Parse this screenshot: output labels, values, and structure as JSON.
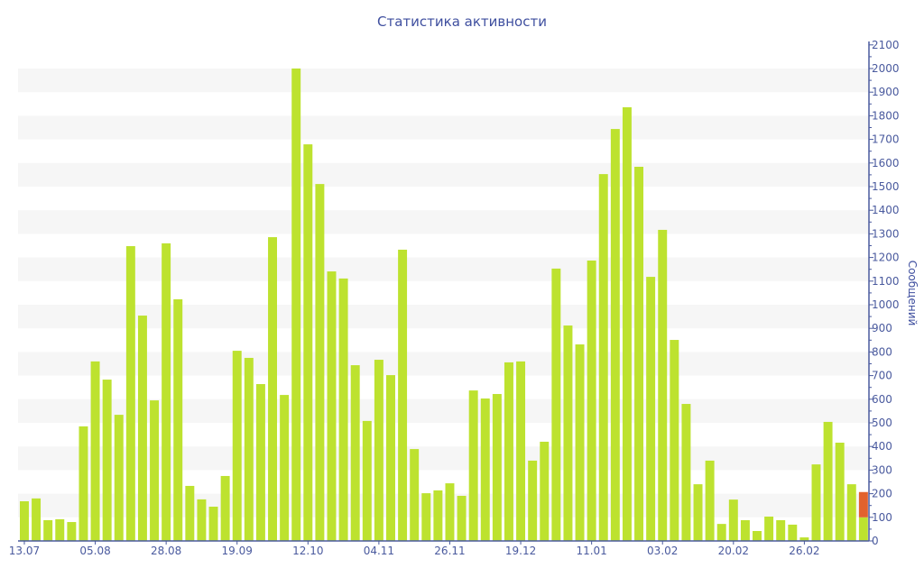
{
  "chart_data": {
    "type": "bar",
    "title": "Статистика активности",
    "xlabel": "",
    "ylabel": "Сообщений",
    "ylim": [
      0,
      2100
    ],
    "ytick_step": 100,
    "yaxis_side": "right",
    "grid": "alternating bands",
    "x_tick_labels": [
      "13.07",
      "05.08",
      "28.08",
      "19.09",
      "12.10",
      "04.11",
      "26.11",
      "19.12",
      "11.01",
      "03.02",
      "20.02",
      "26.02"
    ],
    "x_tick_every": 6,
    "series": [
      {
        "name": "main",
        "color": "#bde22f",
        "values": [
          168,
          180,
          88,
          92,
          80,
          485,
          760,
          683,
          534,
          1248,
          954,
          595,
          1260,
          1023,
          233,
          176,
          145,
          275,
          805,
          775,
          664,
          1286,
          618,
          2000,
          1679,
          1511,
          1141,
          1111,
          744,
          508,
          767,
          702,
          1233,
          389,
          202,
          214,
          244,
          191,
          637,
          603,
          622,
          756,
          760,
          340,
          420,
          1153,
          912,
          832,
          1187,
          1553,
          1744,
          1836,
          1584,
          1118,
          1317,
          851,
          580,
          240,
          340,
          72,
          175,
          88,
          42,
          103,
          88,
          69,
          15,
          324,
          504,
          416,
          240,
          100
        ]
      },
      {
        "name": "current",
        "color": "#e2622d",
        "values": [
          0,
          0,
          0,
          0,
          0,
          0,
          0,
          0,
          0,
          0,
          0,
          0,
          0,
          0,
          0,
          0,
          0,
          0,
          0,
          0,
          0,
          0,
          0,
          0,
          0,
          0,
          0,
          0,
          0,
          0,
          0,
          0,
          0,
          0,
          0,
          0,
          0,
          0,
          0,
          0,
          0,
          0,
          0,
          0,
          0,
          0,
          0,
          0,
          0,
          0,
          0,
          0,
          0,
          0,
          0,
          0,
          0,
          0,
          0,
          0,
          0,
          0,
          0,
          0,
          0,
          0,
          0,
          0,
          0,
          0,
          0,
          107
        ]
      }
    ],
    "axis_color": "#4a5a9e",
    "band_color": "#f6f6f6"
  }
}
